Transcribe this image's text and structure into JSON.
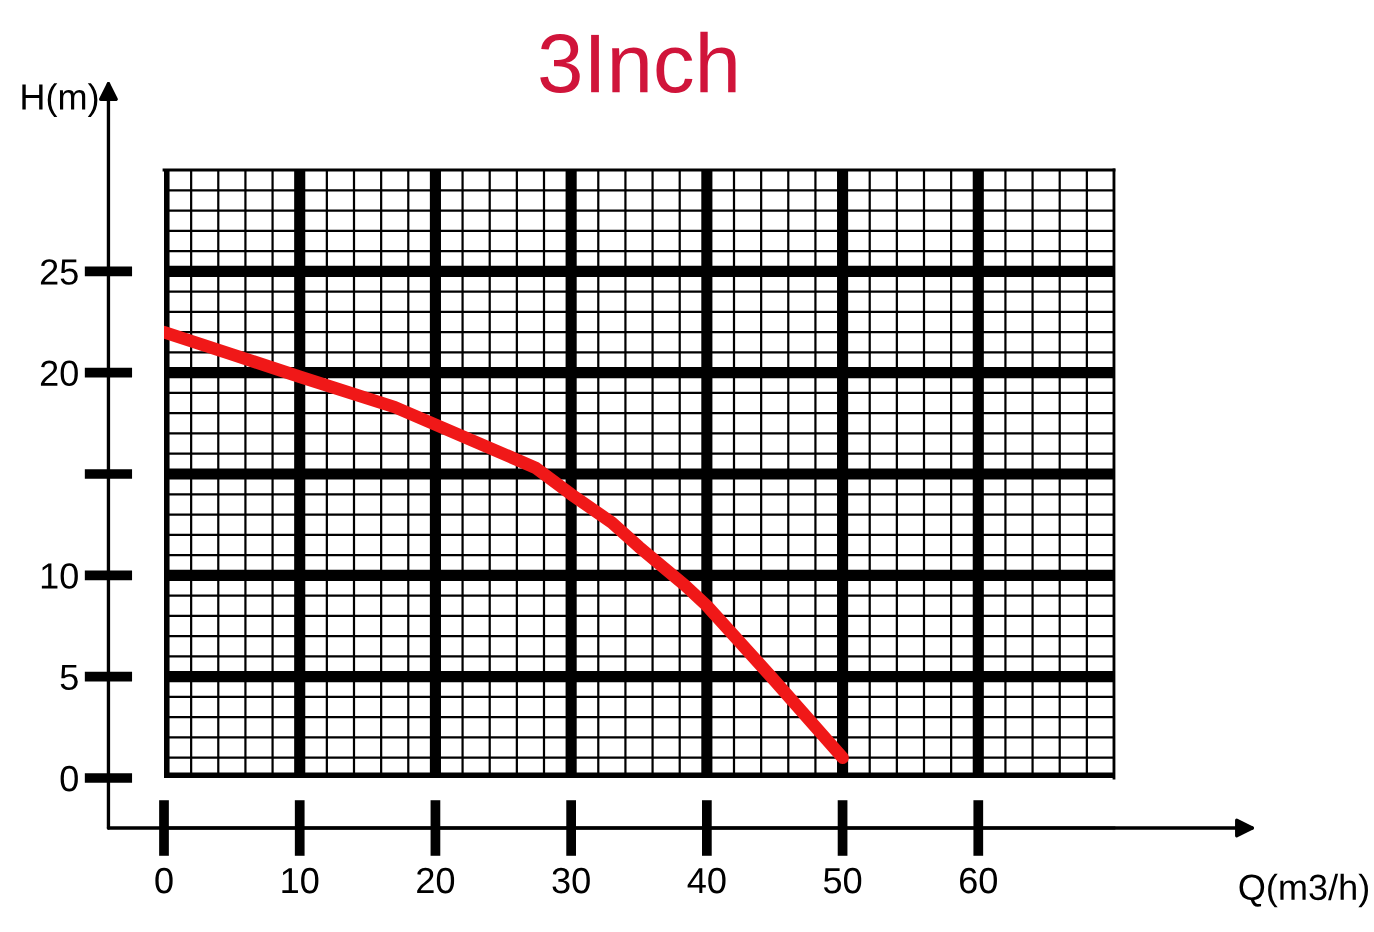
{
  "chart_data": {
    "type": "line",
    "title": "3Inch",
    "xlabel": "Q(m3/h)",
    "ylabel": "H(m)",
    "x": [
      0,
      5,
      10,
      17,
      27.4,
      30,
      33,
      35,
      38.4,
      40,
      45,
      50
    ],
    "series": [
      {
        "color": "#f01818",
        "values": [
          22.0,
          20.9,
          19.8,
          18.3,
          15.3,
          14.0,
          12.6,
          11.4,
          9.5,
          8.5,
          4.8,
          1.0
        ]
      }
    ],
    "xlim": [
      0,
      70
    ],
    "ylim": [
      0,
      30
    ],
    "xticks": [
      0,
      10,
      20,
      30,
      40,
      50,
      60
    ],
    "yticks": [
      0,
      5,
      10,
      {
        "value": 15,
        "label": null
      },
      20,
      25
    ],
    "grid": true,
    "line_style": "solid"
  }
}
